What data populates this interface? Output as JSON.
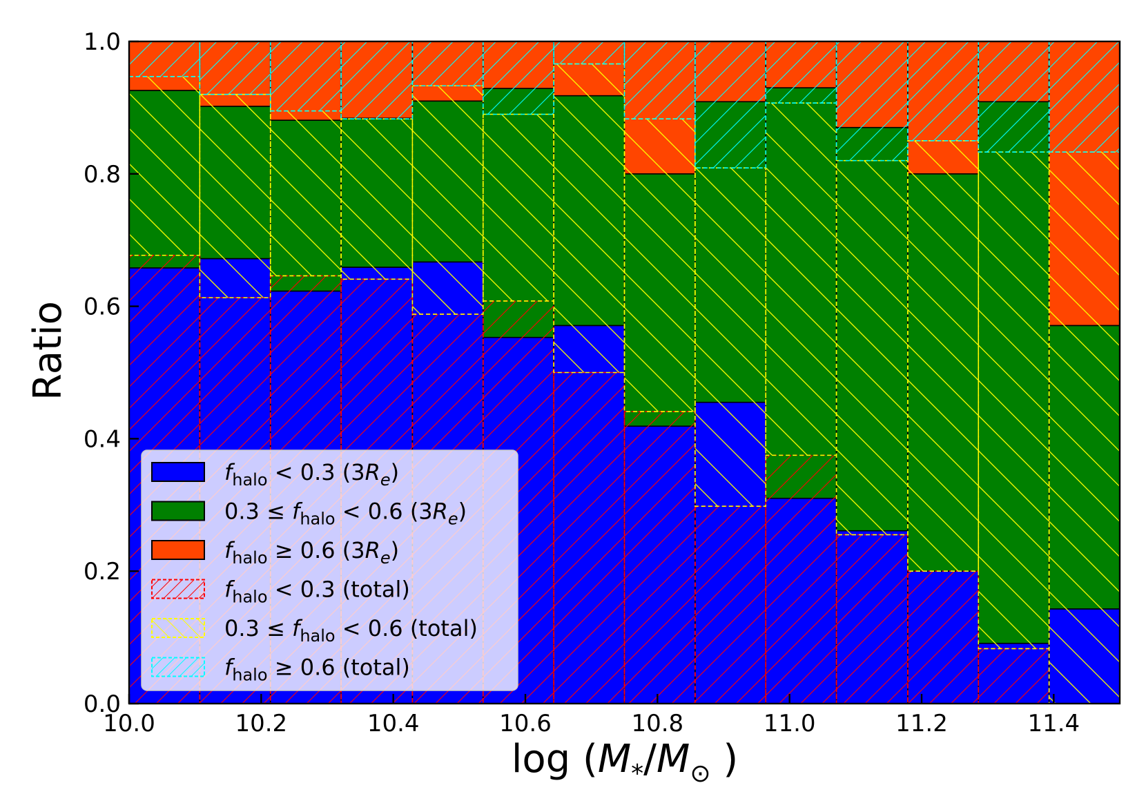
{
  "chart_data": {
    "type": "bar",
    "subtype": "stacked-histogram",
    "title": "",
    "xlabel": "log (M*/M⊙)",
    "xlabel_parts": {
      "prefix": "log (",
      "m1": "M",
      "sub1": "*",
      "slash": "/",
      "m2": "M",
      "sub2": "⊙",
      "suffix": " )"
    },
    "ylabel": "Ratio",
    "xlim": [
      10.0,
      11.5
    ],
    "ylim": [
      0.0,
      1.0
    ],
    "x_ticks": [
      "10.0",
      "10.2",
      "10.4",
      "10.6",
      "10.8",
      "11.0",
      "11.2",
      "11.4"
    ],
    "x_tick_values": [
      10.0,
      10.2,
      10.4,
      10.6,
      10.8,
      11.0,
      11.2,
      11.4
    ],
    "y_ticks": [
      "0.0",
      "0.2",
      "0.4",
      "0.6",
      "0.8",
      "1.0"
    ],
    "y_tick_values": [
      0.0,
      0.2,
      0.4,
      0.6,
      0.8,
      1.0
    ],
    "bin_edges": [
      10.0,
      10.107,
      10.214,
      10.321,
      10.429,
      10.536,
      10.643,
      10.75,
      10.857,
      10.964,
      11.071,
      11.179,
      11.286,
      11.393,
      11.5
    ],
    "series_3Re": [
      {
        "name": "f_halo < 0.3 (3R_e)",
        "color": "#0000ff",
        "values": [
          0.658,
          0.672,
          0.623,
          0.659,
          0.667,
          0.553,
          0.571,
          0.419,
          0.455,
          0.31,
          0.261,
          0.2,
          0.091,
          0.143
        ]
      },
      {
        "name": "0.3 ≤ f_halo < 0.6 (3R_e)",
        "color": "#008000",
        "values": [
          0.268,
          0.23,
          0.258,
          0.225,
          0.243,
          0.376,
          0.347,
          0.381,
          0.454,
          0.62,
          0.609,
          0.6,
          0.818,
          0.428
        ]
      },
      {
        "name": "f_halo ≥ 0.6 (3R_e)",
        "color": "#ff4500",
        "values": [
          0.074,
          0.098,
          0.119,
          0.116,
          0.09,
          0.071,
          0.082,
          0.2,
          0.091,
          0.07,
          0.13,
          0.2,
          0.091,
          0.429
        ]
      }
    ],
    "series_total": [
      {
        "name": "f_halo < 0.3 (total)",
        "color": "#ff0000",
        "values": [
          0.677,
          0.613,
          0.646,
          0.641,
          0.588,
          0.608,
          0.5,
          0.441,
          0.298,
          0.375,
          0.255,
          0.2,
          0.083,
          0.0
        ]
      },
      {
        "name": "0.3 ≤ f_halo < 0.6 (total)",
        "color": "#ffff00",
        "values": [
          0.27,
          0.307,
          0.249,
          0.242,
          0.345,
          0.282,
          0.466,
          0.442,
          0.511,
          0.532,
          0.565,
          0.65,
          0.75,
          0.833
        ]
      },
      {
        "name": "f_halo ≥ 0.6 (total)",
        "color": "#00ffff",
        "values": [
          0.053,
          0.08,
          0.105,
          0.117,
          0.067,
          0.11,
          0.034,
          0.117,
          0.191,
          0.093,
          0.18,
          0.15,
          0.167,
          0.167
        ]
      }
    ],
    "legend_position": "lower-left",
    "legend": [
      {
        "f": "f",
        "sub": "halo",
        "pre": "",
        "post": " < 0.3 (3",
        "re": "R",
        "re_sub": "e",
        "close": ")",
        "style": "solid",
        "color": "#0000ff"
      },
      {
        "f": "f",
        "sub": "halo",
        "pre": "0.3 ≤ ",
        "post": " < 0.6 (3",
        "re": "R",
        "re_sub": "e",
        "close": ")",
        "style": "solid",
        "color": "#008000"
      },
      {
        "f": "f",
        "sub": "halo",
        "pre": "",
        "post": " ≥ 0.6 (3",
        "re": "R",
        "re_sub": "e",
        "close": ")",
        "style": "solid",
        "color": "#ff4500"
      },
      {
        "f": "f",
        "sub": "halo",
        "pre": "",
        "post": " < 0.3 (total)",
        "re": "",
        "re_sub": "",
        "close": "",
        "style": "hatch-forward",
        "color": "#ff0000"
      },
      {
        "f": "f",
        "sub": "halo",
        "pre": "0.3 ≤ ",
        "post": " < 0.6 (total)",
        "re": "",
        "re_sub": "",
        "close": "",
        "style": "hatch-back",
        "color": "#ffff00"
      },
      {
        "f": "f",
        "sub": "halo",
        "pre": "",
        "post": " ≥ 0.6 (total)",
        "re": "",
        "re_sub": "",
        "close": "",
        "style": "hatch-forward",
        "color": "#00ffff"
      }
    ],
    "grid": false
  }
}
